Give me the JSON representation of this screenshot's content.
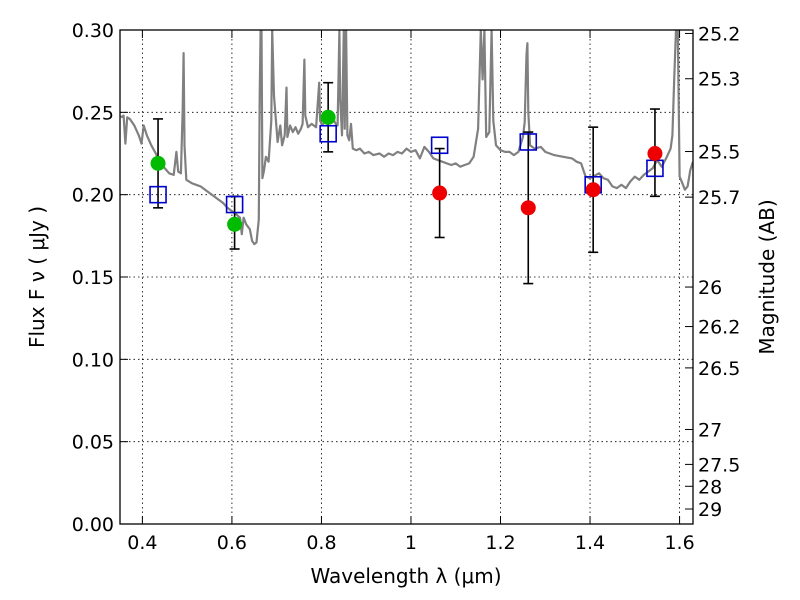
{
  "chart_data": {
    "type": "scatter",
    "xlabel": "Wavelength  λ (μm)",
    "ylabel": "Flux  F ν  (  μJy )",
    "ylabel_right": "Magnitude (AB)",
    "xlim": [
      0.35,
      1.63
    ],
    "ylim": [
      0.0,
      0.3
    ],
    "grid": true,
    "x_ticks": [
      {
        "value": 0.4,
        "label": "0.4"
      },
      {
        "value": 0.6,
        "label": "0.6"
      },
      {
        "value": 0.8,
        "label": "0.8"
      },
      {
        "value": 1.0,
        "label": "1"
      },
      {
        "value": 1.2,
        "label": "1.2"
      },
      {
        "value": 1.4,
        "label": "1.4"
      },
      {
        "value": 1.6,
        "label": "1.6"
      }
    ],
    "y_ticks": [
      {
        "value": 0.0,
        "label": "0.00"
      },
      {
        "value": 0.05,
        "label": "0.05"
      },
      {
        "value": 0.1,
        "label": "0.10"
      },
      {
        "value": 0.15,
        "label": "0.15"
      },
      {
        "value": 0.2,
        "label": "0.20"
      },
      {
        "value": 0.25,
        "label": "0.25"
      },
      {
        "value": 0.3,
        "label": "0.30"
      }
    ],
    "mag_ticks": [
      {
        "flux": 0.2979,
        "label": "25.2"
      },
      {
        "flux": 0.2704,
        "label": "25.3"
      },
      {
        "flux": 0.2262,
        "label": "25.5"
      },
      {
        "flux": 0.1985,
        "label": "25.7"
      },
      {
        "flux": 0.1439,
        "label": "26"
      },
      {
        "flux": 0.1199,
        "label": "26.2"
      },
      {
        "flux": 0.0948,
        "label": "26.5"
      },
      {
        "flux": 0.0574,
        "label": "27"
      },
      {
        "flux": 0.0362,
        "label": "27.5"
      },
      {
        "flux": 0.0229,
        "label": "28"
      },
      {
        "flux": 0.0091,
        "label": "29"
      }
    ],
    "sed_model": {
      "color": "#808080",
      "points": [
        [
          0.352,
          0.247
        ],
        [
          0.358,
          0.248
        ],
        [
          0.362,
          0.231
        ],
        [
          0.366,
          0.247
        ],
        [
          0.372,
          0.246
        ],
        [
          0.382,
          0.242
        ],
        [
          0.392,
          0.236
        ],
        [
          0.398,
          0.231
        ],
        [
          0.403,
          0.242
        ],
        [
          0.41,
          0.236
        ],
        [
          0.42,
          0.23
        ],
        [
          0.43,
          0.225
        ],
        [
          0.44,
          0.219
        ],
        [
          0.45,
          0.216
        ],
        [
          0.46,
          0.213
        ],
        [
          0.47,
          0.212
        ],
        [
          0.476,
          0.226
        ],
        [
          0.48,
          0.214
        ],
        [
          0.486,
          0.213
        ],
        [
          0.49,
          0.252
        ],
        [
          0.492,
          0.286
        ],
        [
          0.494,
          0.23
        ],
        [
          0.498,
          0.209
        ],
        [
          0.51,
          0.207
        ],
        [
          0.52,
          0.206
        ],
        [
          0.53,
          0.205
        ],
        [
          0.54,
          0.203
        ],
        [
          0.55,
          0.201
        ],
        [
          0.56,
          0.199
        ],
        [
          0.57,
          0.197
        ],
        [
          0.58,
          0.195
        ],
        [
          0.59,
          0.192
        ],
        [
          0.6,
          0.19
        ],
        [
          0.61,
          0.188
        ],
        [
          0.618,
          0.186
        ],
        [
          0.622,
          0.176
        ],
        [
          0.626,
          0.186
        ],
        [
          0.632,
          0.182
        ],
        [
          0.64,
          0.179
        ],
        [
          0.645,
          0.172
        ],
        [
          0.65,
          0.17
        ],
        [
          0.655,
          0.171
        ],
        [
          0.66,
          0.185
        ],
        [
          0.662,
          0.26
        ],
        [
          0.664,
          0.3
        ],
        [
          0.666,
          0.3
        ],
        [
          0.668,
          0.21
        ],
        [
          0.672,
          0.215
        ],
        [
          0.676,
          0.223
        ],
        [
          0.682,
          0.22
        ],
        [
          0.688,
          0.245
        ],
        [
          0.69,
          0.3
        ],
        [
          0.694,
          0.26
        ],
        [
          0.698,
          0.246
        ],
        [
          0.702,
          0.232
        ],
        [
          0.708,
          0.242
        ],
        [
          0.712,
          0.23
        ],
        [
          0.718,
          0.236
        ],
        [
          0.722,
          0.265
        ],
        [
          0.724,
          0.235
        ],
        [
          0.73,
          0.242
        ],
        [
          0.736,
          0.238
        ],
        [
          0.742,
          0.241
        ],
        [
          0.748,
          0.237
        ],
        [
          0.754,
          0.24
        ],
        [
          0.758,
          0.243
        ],
        [
          0.762,
          0.282
        ],
        [
          0.764,
          0.248
        ],
        [
          0.77,
          0.241
        ],
        [
          0.778,
          0.243
        ],
        [
          0.788,
          0.241
        ],
        [
          0.795,
          0.268
        ],
        [
          0.797,
          0.245
        ],
        [
          0.802,
          0.242
        ],
        [
          0.808,
          0.245
        ],
        [
          0.814,
          0.243
        ],
        [
          0.82,
          0.244
        ],
        [
          0.826,
          0.246
        ],
        [
          0.832,
          0.243
        ],
        [
          0.836,
          0.242
        ],
        [
          0.84,
          0.3
        ],
        [
          0.842,
          0.258
        ],
        [
          0.846,
          0.236
        ],
        [
          0.85,
          0.3
        ],
        [
          0.852,
          0.24
        ],
        [
          0.855,
          0.3
        ],
        [
          0.858,
          0.236
        ],
        [
          0.862,
          0.233
        ],
        [
          0.866,
          0.243
        ],
        [
          0.87,
          0.228
        ],
        [
          0.878,
          0.227
        ],
        [
          0.886,
          0.228
        ],
        [
          0.896,
          0.225
        ],
        [
          0.906,
          0.226
        ],
        [
          0.916,
          0.224
        ],
        [
          0.93,
          0.225
        ],
        [
          0.94,
          0.223
        ],
        [
          0.95,
          0.225
        ],
        [
          0.96,
          0.224
        ],
        [
          0.97,
          0.226
        ],
        [
          0.98,
          0.225
        ],
        [
          0.99,
          0.228
        ],
        [
          1.0,
          0.226
        ],
        [
          1.01,
          0.227
        ],
        [
          1.02,
          0.222
        ],
        [
          1.03,
          0.229
        ],
        [
          1.04,
          0.226
        ],
        [
          1.05,
          0.222
        ],
        [
          1.06,
          0.221
        ],
        [
          1.07,
          0.22
        ],
        [
          1.08,
          0.219
        ],
        [
          1.09,
          0.218
        ],
        [
          1.1,
          0.219
        ],
        [
          1.11,
          0.217
        ],
        [
          1.12,
          0.218
        ],
        [
          1.13,
          0.219
        ],
        [
          1.14,
          0.223
        ],
        [
          1.15,
          0.24
        ],
        [
          1.156,
          0.3
        ],
        [
          1.16,
          0.27
        ],
        [
          1.164,
          0.3
        ],
        [
          1.168,
          0.235
        ],
        [
          1.175,
          0.238
        ],
        [
          1.18,
          0.3
        ],
        [
          1.184,
          0.245
        ],
        [
          1.19,
          0.23
        ],
        [
          1.2,
          0.227
        ],
        [
          1.21,
          0.226
        ],
        [
          1.22,
          0.226
        ],
        [
          1.23,
          0.224
        ],
        [
          1.24,
          0.226
        ],
        [
          1.25,
          0.235
        ],
        [
          1.254,
          0.244
        ],
        [
          1.258,
          0.285
        ],
        [
          1.26,
          0.292
        ],
        [
          1.262,
          0.25
        ],
        [
          1.266,
          0.23
        ],
        [
          1.276,
          0.228
        ],
        [
          1.29,
          0.229
        ],
        [
          1.3,
          0.226
        ],
        [
          1.32,
          0.224
        ],
        [
          1.34,
          0.223
        ],
        [
          1.36,
          0.222
        ],
        [
          1.37,
          0.22
        ],
        [
          1.38,
          0.219
        ],
        [
          1.39,
          0.211
        ],
        [
          1.4,
          0.21
        ],
        [
          1.42,
          0.213
        ],
        [
          1.43,
          0.21
        ],
        [
          1.44,
          0.209
        ],
        [
          1.45,
          0.205
        ],
        [
          1.46,
          0.204
        ],
        [
          1.47,
          0.206
        ],
        [
          1.48,
          0.204
        ],
        [
          1.49,
          0.208
        ],
        [
          1.5,
          0.211
        ],
        [
          1.51,
          0.209
        ],
        [
          1.52,
          0.212
        ],
        [
          1.53,
          0.214
        ],
        [
          1.54,
          0.216
        ],
        [
          1.55,
          0.221
        ],
        [
          1.56,
          0.217
        ],
        [
          1.57,
          0.222
        ],
        [
          1.58,
          0.228
        ],
        [
          1.584,
          0.236
        ],
        [
          1.588,
          0.27
        ],
        [
          1.592,
          0.3
        ],
        [
          1.596,
          0.3
        ],
        [
          1.6,
          0.211
        ],
        [
          1.606,
          0.207
        ],
        [
          1.612,
          0.203
        ],
        [
          1.618,
          0.205
        ],
        [
          1.624,
          0.215
        ],
        [
          1.63,
          0.22
        ]
      ]
    },
    "model_photometry": {
      "marker": "open-square",
      "color": "#0000cc",
      "points": [
        {
          "x": 0.435,
          "y": 0.2
        },
        {
          "x": 0.606,
          "y": 0.194
        },
        {
          "x": 0.815,
          "y": 0.237
        },
        {
          "x": 1.064,
          "y": 0.23
        },
        {
          "x": 1.262,
          "y": 0.232
        },
        {
          "x": 1.407,
          "y": 0.206
        },
        {
          "x": 1.545,
          "y": 0.216
        }
      ]
    },
    "observed": {
      "marker": "filled-circle",
      "points": [
        {
          "x": 0.435,
          "y": 0.219,
          "err_low": 0.192,
          "err_high": 0.246,
          "color": "#00bb00"
        },
        {
          "x": 0.606,
          "y": 0.182,
          "err_low": 0.167,
          "err_high": 0.199,
          "color": "#00bb00"
        },
        {
          "x": 0.815,
          "y": 0.247,
          "err_low": 0.226,
          "err_high": 0.268,
          "color": "#00bb00"
        },
        {
          "x": 1.064,
          "y": 0.201,
          "err_low": 0.174,
          "err_high": 0.228,
          "color": "#ee0000"
        },
        {
          "x": 1.262,
          "y": 0.192,
          "err_low": 0.146,
          "err_high": 0.238,
          "color": "#ee0000"
        },
        {
          "x": 1.407,
          "y": 0.203,
          "err_low": 0.165,
          "err_high": 0.241,
          "color": "#ee0000"
        },
        {
          "x": 1.545,
          "y": 0.225,
          "err_low": 0.199,
          "err_high": 0.252,
          "color": "#ee0000"
        }
      ]
    }
  }
}
